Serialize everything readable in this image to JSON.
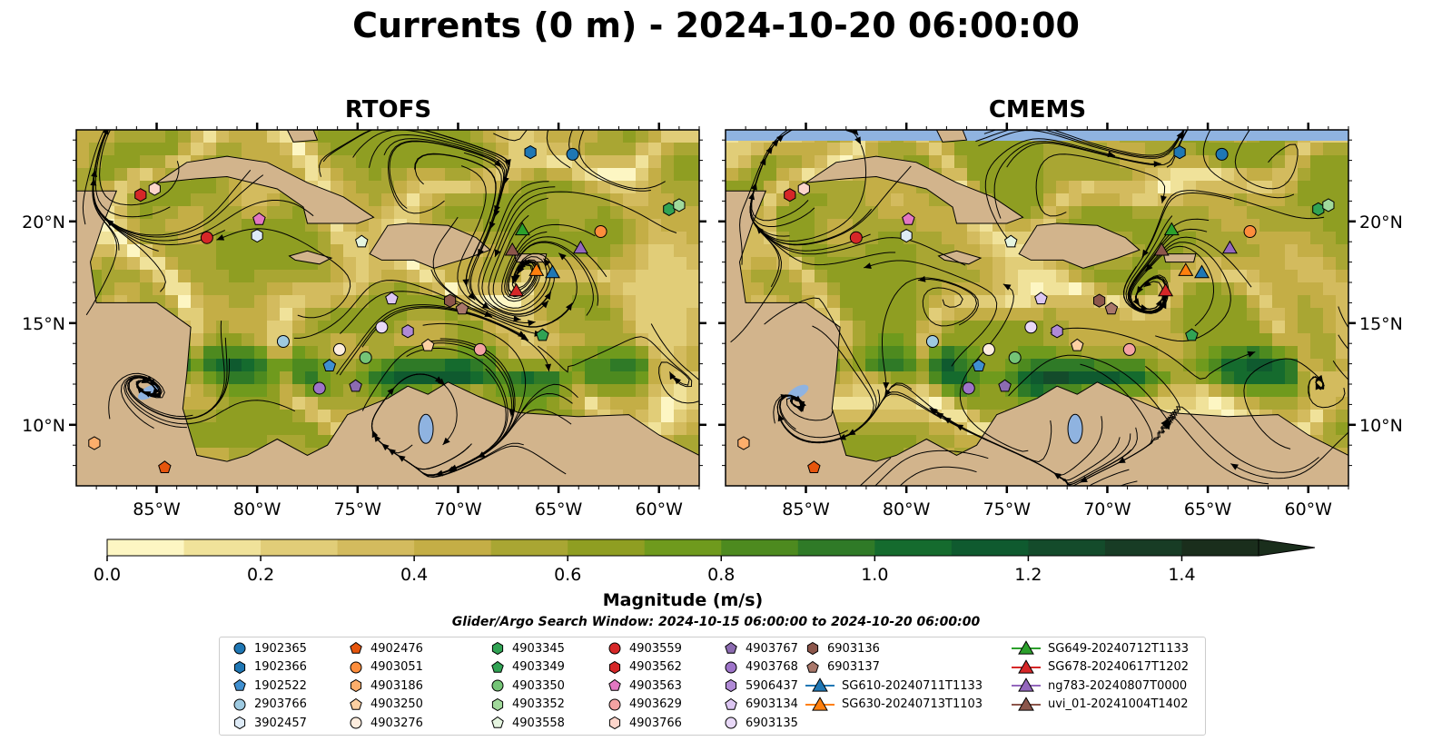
{
  "title": "Currents (0 m) - 2024-10-20 06:00:00",
  "panels": [
    {
      "title": "RTOFS"
    },
    {
      "title": "CMEMS"
    }
  ],
  "colors": {
    "land": "#d2b48c",
    "water_body": "#8fb3e0",
    "river": "#9ab3d6",
    "streamline": "#000000",
    "colormap": [
      "#fdf6c3",
      "#f0e29a",
      "#e1cd78",
      "#d3bb5e",
      "#c4ae46",
      "#a9a633",
      "#8f9e22",
      "#6f9a1d",
      "#4d8a1f",
      "#2f7a27",
      "#156b2e",
      "#0f5a2f",
      "#144b2b",
      "#183c25",
      "#1a2e1c"
    ]
  },
  "axes": {
    "x_ticks": [
      "85°W",
      "80°W",
      "75°W",
      "70°W",
      "65°W",
      "60°W"
    ],
    "y_ticks": [
      "20°N",
      "15°N",
      "10°N"
    ]
  },
  "colorbar": {
    "label": "Magnitude (m/s)",
    "ticks": [
      "0.0",
      "0.2",
      "0.4",
      "0.6",
      "0.8",
      "1.0",
      "1.2",
      "1.4"
    ],
    "range": [
      0,
      1.5
    ],
    "extend": "max"
  },
  "search_window": "Glider/Argo Search Window: 2024-10-15 06:00:00 to 2024-10-20 06:00:00",
  "chart_data": {
    "type": "map",
    "variable": "Currents (0 m)",
    "datetime": "2024-10-20 06:00:00",
    "lon_range": [
      -89,
      -58
    ],
    "lat_range": [
      7,
      24.5
    ],
    "panels": [
      "RTOFS",
      "CMEMS"
    ],
    "markers": [
      {
        "id": "1902365",
        "lon": -64.3,
        "lat": 23.3,
        "shape": "circle",
        "color": "#1f77b4"
      },
      {
        "id": "1902366",
        "lon": -66.4,
        "lat": 23.4,
        "shape": "hexagon",
        "color": "#1f77b4"
      },
      {
        "id": "1902522",
        "lon": -76.4,
        "lat": 12.9,
        "shape": "pentagon",
        "color": "#3f8fd0"
      },
      {
        "id": "2903766",
        "lon": -78.7,
        "lat": 14.1,
        "shape": "circle",
        "color": "#9ecae1"
      },
      {
        "id": "3902457",
        "lon": -80.0,
        "lat": 19.3,
        "shape": "hexagon",
        "color": "#deebf7"
      },
      {
        "id": "4902476",
        "lon": -84.6,
        "lat": 7.9,
        "shape": "pentagon",
        "color": "#e6550d"
      },
      {
        "id": "4903051",
        "lon": -62.9,
        "lat": 19.5,
        "shape": "circle",
        "color": "#fd8d3c"
      },
      {
        "id": "4903186",
        "lon": -88.1,
        "lat": 9.1,
        "shape": "hexagon",
        "color": "#fdae6b"
      },
      {
        "id": "4903250",
        "lon": -71.5,
        "lat": 13.9,
        "shape": "pentagon",
        "color": "#fdd0a2"
      },
      {
        "id": "4903276",
        "lon": -75.9,
        "lat": 13.7,
        "shape": "circle",
        "color": "#feedde"
      },
      {
        "id": "4903345",
        "lon": -59.5,
        "lat": 20.6,
        "shape": "hexagon",
        "color": "#31a354"
      },
      {
        "id": "4903349",
        "lon": -65.8,
        "lat": 14.4,
        "shape": "pentagon",
        "color": "#31a354"
      },
      {
        "id": "4903350",
        "lon": -74.6,
        "lat": 13.3,
        "shape": "circle",
        "color": "#74c476"
      },
      {
        "id": "4903352",
        "lon": -59.0,
        "lat": 20.8,
        "shape": "hexagon",
        "color": "#a1d99b"
      },
      {
        "id": "4903558",
        "lon": -74.8,
        "lat": 19.0,
        "shape": "pentagon",
        "color": "#e5f5e0"
      },
      {
        "id": "4903559",
        "lon": -82.5,
        "lat": 19.2,
        "shape": "circle",
        "color": "#d62728"
      },
      {
        "id": "4903562",
        "lon": -85.8,
        "lat": 21.3,
        "shape": "hexagon",
        "color": "#d62728"
      },
      {
        "id": "4903563",
        "lon": -79.9,
        "lat": 20.1,
        "shape": "pentagon",
        "color": "#e377c2"
      },
      {
        "id": "4903629",
        "lon": -68.9,
        "lat": 13.7,
        "shape": "circle",
        "color": "#f4a3a3"
      },
      {
        "id": "4903766",
        "lon": -85.1,
        "lat": 21.6,
        "shape": "hexagon",
        "color": "#fcd5cb"
      },
      {
        "id": "4903767",
        "lon": -75.1,
        "lat": 11.9,
        "shape": "pentagon",
        "color": "#8c6bb1"
      },
      {
        "id": "4903768",
        "lon": -76.9,
        "lat": 11.8,
        "shape": "circle",
        "color": "#9e74c9"
      },
      {
        "id": "5906437",
        "lon": -72.5,
        "lat": 14.6,
        "shape": "hexagon",
        "color": "#b08ad6"
      },
      {
        "id": "6903134",
        "lon": -73.3,
        "lat": 16.2,
        "shape": "pentagon",
        "color": "#dcc6f2"
      },
      {
        "id": "6903135",
        "lon": -73.8,
        "lat": 14.8,
        "shape": "circle",
        "color": "#e8d8f7"
      },
      {
        "id": "6903136",
        "lon": -70.4,
        "lat": 16.1,
        "shape": "hexagon",
        "color": "#8c564b"
      },
      {
        "id": "6903137",
        "lon": -69.8,
        "lat": 15.7,
        "shape": "pentagon",
        "color": "#a9776a"
      },
      {
        "id": "SG610-20240711T1133",
        "lon": -65.3,
        "lat": 17.5,
        "shape": "triangle",
        "color": "#1f77b4"
      },
      {
        "id": "SG630-20240713T1103",
        "lon": -66.1,
        "lat": 17.6,
        "shape": "triangle",
        "color": "#ff7f0e"
      },
      {
        "id": "SG649-20240712T1133",
        "lon": -66.8,
        "lat": 19.6,
        "shape": "triangle",
        "color": "#2ca02c"
      },
      {
        "id": "SG678-20240617T1202",
        "lon": -67.1,
        "lat": 16.6,
        "shape": "triangle",
        "color": "#d62728"
      },
      {
        "id": "ng783-20240807T0000",
        "lon": -63.9,
        "lat": 18.7,
        "shape": "triangle",
        "color": "#9467bd"
      },
      {
        "id": "uvi_01-20241004T1402",
        "lon": -67.3,
        "lat": 18.6,
        "shape": "triangle",
        "color": "#8c564b"
      }
    ]
  },
  "legend": {
    "columns": [
      [
        "1902365",
        "1902366",
        "1902522",
        "2903766",
        "3902457"
      ],
      [
        "4902476",
        "4903051",
        "4903186",
        "4903250",
        "4903276"
      ],
      [
        "4903345",
        "4903349",
        "4903350",
        "4903352",
        "4903558"
      ],
      [
        "4903559",
        "4903562",
        "4903563",
        "4903629",
        "4903766"
      ],
      [
        "4903767",
        "4903768",
        "5906437",
        "6903134",
        "6903135"
      ],
      [
        "6903136",
        "6903137",
        "SG610-20240711T1133",
        "SG630-20240713T1103"
      ],
      [
        "SG649-20240712T1133",
        "SG678-20240617T1202",
        "ng783-20240807T0000",
        "uvi_01-20241004T1402"
      ]
    ]
  }
}
